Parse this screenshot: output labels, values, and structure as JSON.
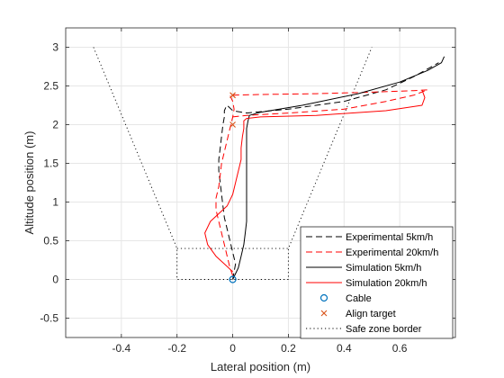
{
  "chart_data": {
    "type": "line",
    "title": "",
    "xlabel": "Lateral position (m)",
    "ylabel": "Altitude position (m)",
    "xlim": [
      -0.6,
      0.8
    ],
    "ylim": [
      -0.75,
      3.25
    ],
    "xticks": [
      -0.4,
      -0.2,
      0,
      0.2,
      0.4,
      0.6
    ],
    "xtick_labels": [
      "-0.4",
      "-0.2",
      "0",
      "0.2",
      "0.4",
      "0.6"
    ],
    "yticks": [
      -0.5,
      0,
      0.5,
      1,
      1.5,
      2,
      2.5,
      3
    ],
    "ytick_labels": [
      "-0.5",
      "0",
      "0.5",
      "1",
      "1.5",
      "2",
      "2.5",
      "3"
    ],
    "grid": true,
    "legend_position": "bottom-right",
    "series": [
      {
        "name": "Experimental 5km/h",
        "color": "#000000",
        "style": "dashed",
        "x": [
          0.0,
          0.005,
          0.01,
          0.0,
          -0.01,
          -0.02,
          -0.03,
          -0.035,
          -0.04,
          -0.045,
          -0.05,
          -0.05,
          -0.045,
          -0.04,
          -0.035,
          -0.03,
          -0.03,
          -0.025,
          -0.02,
          0.0,
          0.05,
          0.2,
          0.4,
          0.55,
          0.65,
          0.7,
          0.74
        ],
        "y": [
          0.0,
          0.1,
          0.2,
          0.35,
          0.5,
          0.65,
          0.8,
          0.95,
          1.1,
          1.25,
          1.4,
          1.55,
          1.7,
          1.85,
          2.0,
          2.1,
          2.18,
          2.22,
          2.25,
          2.18,
          2.15,
          2.2,
          2.3,
          2.45,
          2.62,
          2.72,
          2.8
        ]
      },
      {
        "name": "Experimental 20km/h",
        "color": "#ff0000",
        "style": "dashed",
        "x": [
          0.0,
          -0.01,
          -0.02,
          -0.03,
          -0.04,
          -0.05,
          -0.06,
          -0.06,
          -0.05,
          -0.045,
          -0.04,
          -0.03,
          -0.02,
          -0.01,
          0.0,
          0.005,
          0.0,
          -0.01,
          0.1,
          0.3,
          0.5,
          0.65,
          0.7,
          0.65,
          0.55,
          0.4,
          0.2,
          0.05,
          0.0
        ],
        "y": [
          0.05,
          0.15,
          0.3,
          0.45,
          0.6,
          0.75,
          0.9,
          1.05,
          1.2,
          1.35,
          1.5,
          1.65,
          1.8,
          1.95,
          2.1,
          2.2,
          2.3,
          2.38,
          2.39,
          2.4,
          2.42,
          2.44,
          2.45,
          2.38,
          2.3,
          2.2,
          2.15,
          2.12,
          2.1
        ]
      },
      {
        "name": "Simulation 5km/h",
        "color": "#000000",
        "style": "solid",
        "x": [
          0.0,
          0.02,
          0.03,
          0.04,
          0.045,
          0.05,
          0.05,
          0.05,
          0.05,
          0.05,
          0.05,
          0.05,
          0.05,
          0.05,
          0.055,
          0.06,
          0.1,
          0.25,
          0.45,
          0.6,
          0.7,
          0.75,
          0.76
        ],
        "y": [
          0.0,
          0.15,
          0.3,
          0.45,
          0.6,
          0.75,
          0.9,
          1.05,
          1.2,
          1.35,
          1.5,
          1.65,
          1.8,
          1.95,
          2.05,
          2.12,
          2.16,
          2.25,
          2.4,
          2.55,
          2.7,
          2.8,
          2.88
        ]
      },
      {
        "name": "Simulation 20km/h",
        "color": "#ff0000",
        "style": "solid",
        "x": [
          0.0,
          -0.03,
          -0.06,
          -0.09,
          -0.1,
          -0.08,
          -0.05,
          -0.02,
          0.0,
          0.01,
          0.02,
          0.03,
          0.03,
          0.035,
          0.04,
          0.04,
          0.05,
          0.1,
          0.3,
          0.55,
          0.68,
          0.69,
          0.68
        ],
        "y": [
          0.1,
          0.2,
          0.3,
          0.45,
          0.6,
          0.75,
          0.85,
          0.95,
          1.1,
          1.25,
          1.4,
          1.55,
          1.7,
          1.85,
          1.95,
          2.05,
          2.08,
          2.1,
          2.12,
          2.18,
          2.25,
          2.35,
          2.45
        ]
      },
      {
        "name": "Cable",
        "color": "#0072bd",
        "style": "marker-circle",
        "x": [
          0.0
        ],
        "y": [
          0.0
        ]
      },
      {
        "name": "Align target",
        "color": "#d95319",
        "style": "marker-x",
        "x": [
          0.0,
          0.0
        ],
        "y": [
          2.0,
          2.38
        ]
      },
      {
        "name": "Safe zone border",
        "color": "#000000",
        "style": "dotted",
        "x": [
          -0.5,
          -0.2,
          -0.2,
          0.2,
          0.2,
          0.5
        ],
        "y": [
          3.0,
          0.4,
          0.0,
          0.0,
          0.4,
          3.0
        ]
      }
    ],
    "annotations": [
      {
        "type": "dotted-segment",
        "x": [
          -0.2,
          0.2
        ],
        "y": [
          0.4,
          0.4
        ]
      }
    ]
  }
}
